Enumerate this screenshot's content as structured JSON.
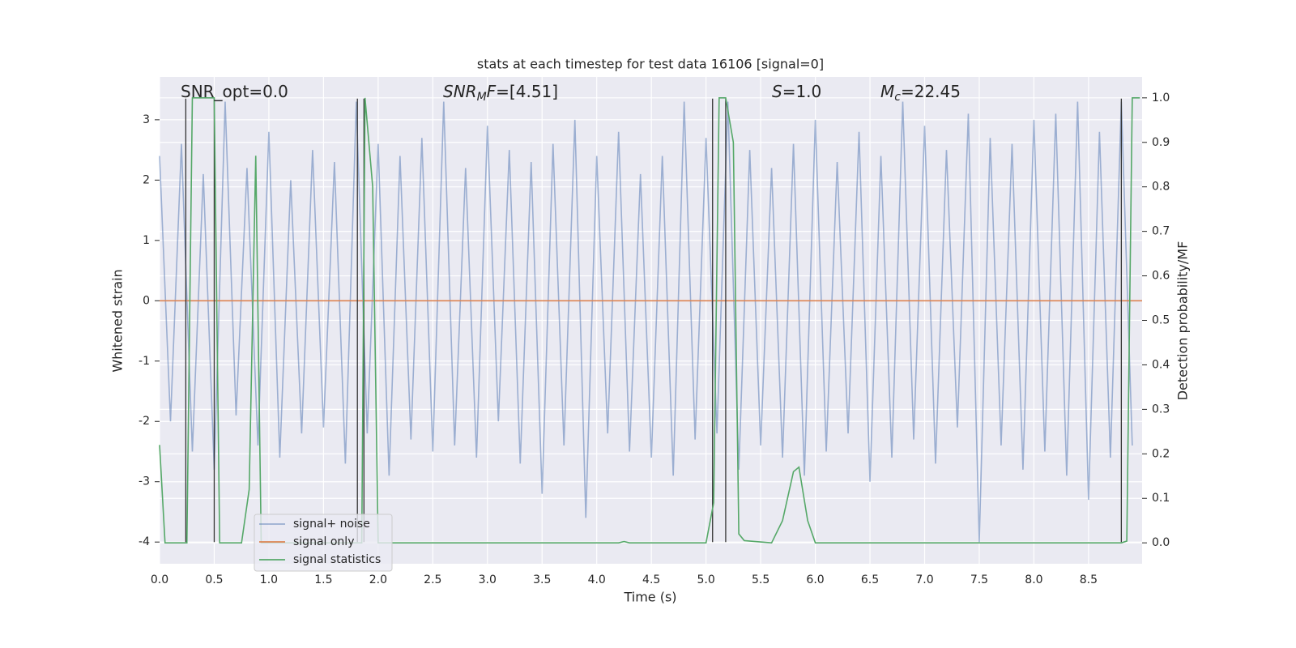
{
  "chart_data": {
    "type": "line",
    "title": "stats at each timestep for test data 16106 [signal=0]",
    "xlabel": "Time (s)",
    "ylabel": "Whitened strain",
    "y2label": "Detection probability/MF",
    "xlim": [
      0,
      8.99
    ],
    "ylim": [
      -4.36,
      3.71
    ],
    "y2lim": [
      -0.047,
      1.047
    ],
    "xticks": [
      {
        "value": 0,
        "label": "0.0"
      },
      {
        "value": 0.5,
        "label": "0.5"
      },
      {
        "value": 1,
        "label": "1.0"
      },
      {
        "value": 1.5,
        "label": "1.5"
      },
      {
        "value": 2,
        "label": "2.0"
      },
      {
        "value": 2.5,
        "label": "2.5"
      },
      {
        "value": 3,
        "label": "3.0"
      },
      {
        "value": 3.5,
        "label": "3.5"
      },
      {
        "value": 4,
        "label": "4.0"
      },
      {
        "value": 4.5,
        "label": "4.5"
      },
      {
        "value": 5,
        "label": "5.0"
      },
      {
        "value": 5.5,
        "label": "5.5"
      },
      {
        "value": 6,
        "label": "6.0"
      },
      {
        "value": 6.5,
        "label": "6.5"
      },
      {
        "value": 7,
        "label": "7.0"
      },
      {
        "value": 7.5,
        "label": "7.5"
      },
      {
        "value": 8,
        "label": "8.0"
      },
      {
        "value": 8.5,
        "label": "8.5"
      }
    ],
    "yticks": [
      -4,
      -3,
      -2,
      -1,
      0,
      1,
      2,
      3
    ],
    "y2ticks": [
      {
        "value": 0,
        "label": "0.0"
      },
      {
        "value": 0.1,
        "label": "0.1"
      },
      {
        "value": 0.2,
        "label": "0.2"
      },
      {
        "value": 0.3,
        "label": "0.3"
      },
      {
        "value": 0.4,
        "label": "0.4"
      },
      {
        "value": 0.5,
        "label": "0.5"
      },
      {
        "value": 0.6,
        "label": "0.6"
      },
      {
        "value": 0.7,
        "label": "0.7"
      },
      {
        "value": 0.8,
        "label": "0.8"
      },
      {
        "value": 0.9,
        "label": "0.9"
      },
      {
        "value": 1,
        "label": "1.0"
      }
    ],
    "grid": true,
    "legend": "lower left",
    "series": [
      {
        "name": "signal+ noise",
        "color": "#4c72b0",
        "opacity": 0.5,
        "x": [
          0.0,
          0.1,
          0.2,
          0.3,
          0.4,
          0.5,
          0.6,
          0.7,
          0.8,
          0.9,
          1.0,
          1.1,
          1.2,
          1.3,
          1.4,
          1.5,
          1.6,
          1.7,
          1.8,
          1.9,
          2.0,
          2.1,
          2.2,
          2.3,
          2.4,
          2.5,
          2.6,
          2.7,
          2.8,
          2.9,
          3.0,
          3.1,
          3.2,
          3.3,
          3.4,
          3.5,
          3.6,
          3.7,
          3.8,
          3.9,
          4.0,
          4.1,
          4.2,
          4.3,
          4.4,
          4.5,
          4.6,
          4.7,
          4.8,
          4.9,
          5.0,
          5.1,
          5.2,
          5.3,
          5.4,
          5.5,
          5.6,
          5.7,
          5.8,
          5.9,
          6.0,
          6.1,
          6.2,
          6.3,
          6.4,
          6.5,
          6.6,
          6.7,
          6.8,
          6.9,
          7.0,
          7.1,
          7.2,
          7.3,
          7.4,
          7.5,
          7.6,
          7.7,
          7.8,
          7.9,
          8.0,
          8.1,
          8.2,
          8.3,
          8.4,
          8.5,
          8.6,
          8.7,
          8.8,
          8.9
        ],
        "values": [
          2.4,
          -2.0,
          2.6,
          -2.5,
          2.1,
          -2.8,
          3.3,
          -1.9,
          2.2,
          -2.4,
          2.8,
          -2.6,
          2.0,
          -2.2,
          2.5,
          -2.1,
          2.3,
          -2.7,
          3.3,
          -2.2,
          2.6,
          -2.9,
          2.4,
          -2.3,
          2.7,
          -2.5,
          3.3,
          -2.4,
          2.2,
          -2.6,
          2.9,
          -2.0,
          2.5,
          -2.7,
          2.3,
          -3.2,
          2.6,
          -2.4,
          3.0,
          -3.6,
          2.4,
          -2.2,
          2.8,
          -2.5,
          2.1,
          -2.6,
          2.4,
          -2.9,
          3.3,
          -2.3,
          2.7,
          -2.2,
          3.3,
          -2.8,
          2.5,
          -2.4,
          2.2,
          -2.6,
          2.6,
          -2.9,
          3.0,
          -2.5,
          2.3,
          -2.2,
          2.8,
          -3.0,
          2.4,
          -2.6,
          3.3,
          -2.3,
          2.9,
          -2.7,
          2.5,
          -2.1,
          3.1,
          -4.0,
          2.7,
          -2.4,
          2.6,
          -2.8,
          3.0,
          -2.5,
          3.1,
          -2.9,
          3.3,
          -3.3,
          2.8,
          -2.6,
          3.3,
          -2.4
        ]
      },
      {
        "name": "signal only",
        "color": "#dd8452",
        "opacity": 1,
        "x": [
          0,
          8.99
        ],
        "values": [
          0,
          0
        ]
      },
      {
        "name": "signal statistics",
        "color": "#55a868",
        "opacity": 1,
        "axis": "y2",
        "x": [
          0,
          0.05,
          0.2,
          0.25,
          0.3,
          0.5,
          0.55,
          0.6,
          0.75,
          0.82,
          0.88,
          0.93,
          1.0,
          1.85,
          1.88,
          1.95,
          2.0,
          4.2,
          4.25,
          4.3,
          5.0,
          5.07,
          5.12,
          5.18,
          5.25,
          5.3,
          5.35,
          5.6,
          5.7,
          5.8,
          5.85,
          5.93,
          6.0,
          8.8,
          8.85,
          8.9,
          8.97
        ],
        "values": [
          0.22,
          0,
          0,
          0,
          1,
          1,
          0,
          0,
          0,
          0.12,
          0.87,
          0,
          0,
          0,
          1,
          0.8,
          0,
          0,
          0.003,
          0,
          0,
          0.09,
          1,
          1,
          0.9,
          0.02,
          0.005,
          0,
          0.05,
          0.16,
          0.17,
          0.05,
          0,
          0,
          0.004,
          1,
          1
        ]
      }
    ],
    "vlines": {
      "x": [
        0.24,
        0.5,
        1.81,
        1.87,
        5.06,
        5.18,
        8.8
      ],
      "ymin": -4,
      "ymax": 3.35,
      "color": "#333333"
    },
    "annotations": [
      {
        "parts": [
          {
            "text": "SNR_opt=0.0"
          }
        ]
      },
      {
        "parts": [
          {
            "text": "SNR",
            "italic": true
          },
          {
            "text": "M",
            "italic": true,
            "sub": true
          },
          {
            "text": "F",
            "italic": true
          },
          {
            "text": "=[4.51]"
          }
        ]
      },
      {
        "parts": [
          {
            "text": "S",
            "italic": true
          },
          {
            "text": "=1.0"
          }
        ]
      },
      {
        "parts": [
          {
            "text": "M",
            "italic": true
          },
          {
            "text": "c",
            "italic": true,
            "sub": true
          },
          {
            "text": "=22.45"
          }
        ]
      }
    ]
  }
}
